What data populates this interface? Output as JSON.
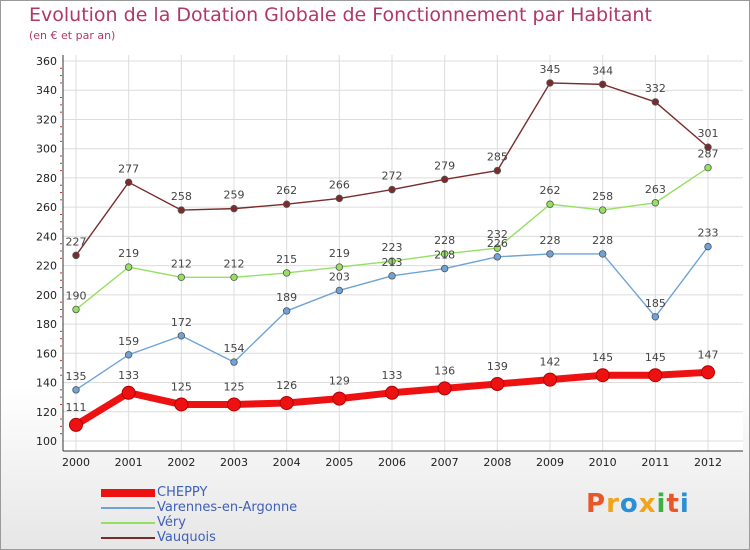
{
  "header": {
    "title": "Evolution de la Dotation Globale de Fonctionnement par Habitant",
    "subtitle": "(en € et par an)"
  },
  "logo": {
    "text": "Proxiti",
    "colors": [
      "#e8562a",
      "#f2a41c",
      "#2a8fd6",
      "#f2a41c",
      "#3cb043",
      "#e8562a",
      "#2a8fd6"
    ]
  },
  "chart_data": {
    "type": "line",
    "categories": [
      "2000",
      "2001",
      "2002",
      "2003",
      "2004",
      "2005",
      "2006",
      "2007",
      "2008",
      "2009",
      "2010",
      "2011",
      "2012"
    ],
    "ylim": [
      100,
      360
    ],
    "yticks": [
      "100",
      "120",
      "140",
      "160",
      "180",
      "200",
      "220",
      "240",
      "260",
      "280",
      "300",
      "320",
      "340",
      "360"
    ],
    "grid": true,
    "legend_position": "bottom-left",
    "series": [
      {
        "name": "CHEPPY",
        "color": "#ee1111",
        "bold": true,
        "values": [
          111,
          133,
          125,
          125,
          126,
          129,
          133,
          136,
          139,
          142,
          145,
          145,
          147
        ]
      },
      {
        "name": "Varennes-en-Argonne",
        "color": "#6fa3d8",
        "bold": false,
        "values": [
          135,
          159,
          172,
          154,
          189,
          203,
          213,
          218,
          226,
          228,
          228,
          185,
          233
        ]
      },
      {
        "name": "Véry",
        "color": "#94e060",
        "bold": false,
        "values": [
          190,
          219,
          212,
          212,
          215,
          219,
          223,
          228,
          232,
          262,
          258,
          263,
          287
        ]
      },
      {
        "name": "Vauquois",
        "color": "#7a2b2b",
        "bold": false,
        "values": [
          227,
          277,
          258,
          259,
          262,
          266,
          272,
          279,
          285,
          345,
          344,
          332,
          301
        ]
      }
    ]
  }
}
